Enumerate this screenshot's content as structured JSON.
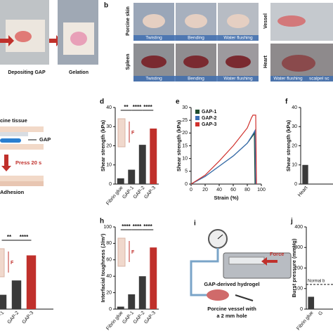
{
  "panel_a": {
    "captions": [
      "Depositing GAP",
      "Gelation"
    ]
  },
  "panel_b": {
    "label": "b",
    "rows": [
      "Porcine skin",
      "Spleen"
    ],
    "side_rows": [
      "Vessel",
      "Heart"
    ],
    "captions": [
      "Twisting",
      "Bending",
      "Water flushing",
      "Twisting",
      "Bending",
      "Water flushing",
      "Water flushing",
      "scalpel sc"
    ]
  },
  "panel_c": {
    "texts": [
      "cine tissue",
      "GAP",
      "Press 20 s",
      "Adhesion"
    ]
  },
  "panel_i": {
    "label": "i",
    "texts": [
      "Force",
      "GAP-derived hydrogel",
      "Porcine vessel with",
      "a 2 mm hole"
    ]
  },
  "chart_data": [
    {
      "type": "bar",
      "label": "d",
      "ylabel": "Shear strength (kPa)",
      "categories": [
        "Fibrin glue",
        "GAP-1",
        "GAP-2",
        "GAP-3"
      ],
      "values": [
        3,
        7.5,
        20.5,
        29
      ],
      "colors": [
        "#3a3a3a",
        "#3a3a3a",
        "#3a3a3a",
        "#c0302b"
      ],
      "ylim": [
        0,
        40
      ],
      "yticks": [
        0,
        10,
        20,
        30,
        40
      ],
      "annotations": [
        "**",
        "****",
        "****"
      ],
      "inset_label": "F"
    },
    {
      "type": "line",
      "label": "e",
      "xlabel": "Strain (%)",
      "ylabel": "Shear strength (kPa)",
      "xlim": [
        0,
        100
      ],
      "xticks": [
        0,
        20,
        40,
        60,
        80,
        100
      ],
      "ylim": [
        0,
        30
      ],
      "yticks": [
        0,
        5,
        10,
        15,
        20,
        25,
        30
      ],
      "series": [
        {
          "name": "GAP-1",
          "color": "#1f4d2e",
          "x": [
            0,
            20,
            40,
            60,
            80,
            88,
            90,
            91
          ],
          "values": [
            0,
            3,
            7,
            11,
            16,
            19,
            20,
            0
          ]
        },
        {
          "name": "GAP-2",
          "color": "#3a6fb5",
          "x": [
            0,
            20,
            40,
            60,
            80,
            89,
            91,
            92
          ],
          "values": [
            0,
            3,
            7,
            11,
            16,
            20,
            21,
            0
          ]
        },
        {
          "name": "GAP-3",
          "color": "#d0312d",
          "x": [
            0,
            20,
            40,
            60,
            80,
            86,
            88,
            92,
            93
          ],
          "values": [
            0,
            3.5,
            9,
            15,
            22,
            26,
            27,
            27,
            0
          ]
        }
      ]
    },
    {
      "type": "bar",
      "label": "f",
      "ylabel": "Shear strength (kPa)",
      "categories": [
        "Heart"
      ],
      "values": [
        10
      ],
      "colors": [
        "#3a3a3a"
      ],
      "ylim": [
        0,
        40
      ],
      "yticks": [
        0,
        10,
        20,
        30,
        40
      ]
    },
    {
      "type": "bar",
      "categories": [
        "-1",
        "GAP-2",
        "GAP-3"
      ],
      "values": [
        20,
        40,
        75
      ],
      "colors": [
        "#3a3a3a",
        "#3a3a3a",
        "#c0302b"
      ],
      "ylim": [
        0,
        100
      ],
      "annotations": [
        "**",
        "****"
      ],
      "inset_label": "F"
    },
    {
      "type": "bar",
      "label": "h",
      "ylabel": "Interfacial toughness (J/m²)",
      "categories": [
        "Fibrin glue",
        "GAP-1",
        "GAP-2",
        "GAP-3"
      ],
      "values": [
        3,
        18,
        40,
        75
      ],
      "colors": [
        "#3a3a3a",
        "#3a3a3a",
        "#3a3a3a",
        "#c0302b"
      ],
      "ylim": [
        0,
        100
      ],
      "yticks": [
        0,
        20,
        40,
        60,
        80,
        100
      ],
      "annotations": [
        "****",
        "****",
        "****"
      ],
      "inset_label": "F"
    },
    {
      "type": "bar",
      "label": "j",
      "ylabel": "Burst pressure (mmHg)",
      "categories": [
        "Fibrin glue",
        "G"
      ],
      "values": [
        60,
        null
      ],
      "colors": [
        "#3a3a3a",
        "#c0302b"
      ],
      "ylim": [
        0,
        400
      ],
      "yticks": [
        0,
        100,
        200,
        300,
        400
      ],
      "reference": {
        "label": "Normal b",
        "value": 120
      }
    }
  ]
}
